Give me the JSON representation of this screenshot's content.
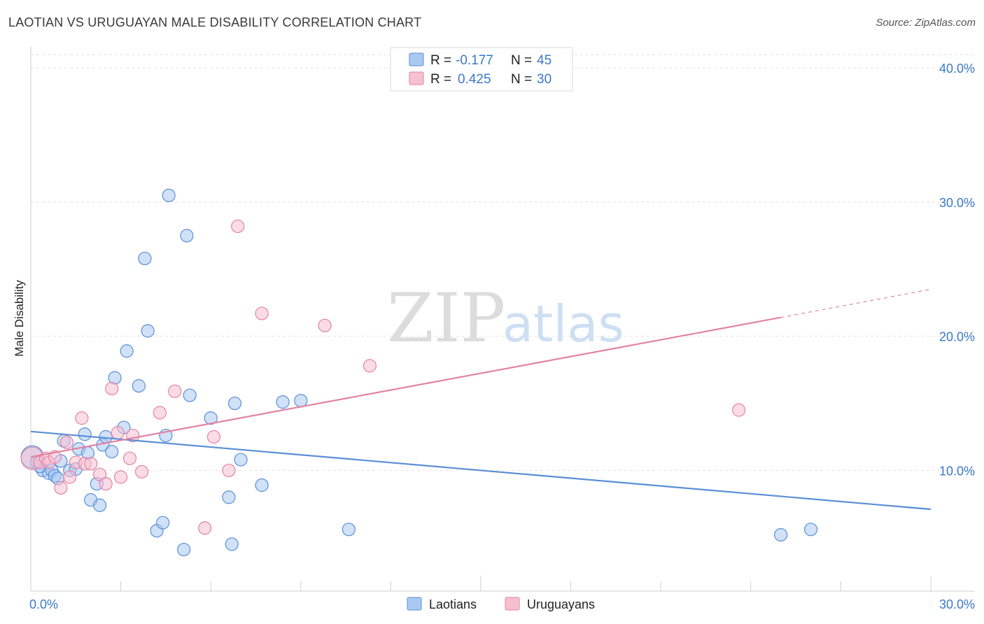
{
  "header": {
    "title": "LAOTIAN VS URUGUAYAN MALE DISABILITY CORRELATION CHART",
    "source": "Source: ZipAtlas.com"
  },
  "watermark": {
    "zip": "ZIP",
    "atlas": "atlas"
  },
  "legend": {
    "rows": [
      {
        "r_label": "R =",
        "r_value": "-0.177",
        "n_label": "N =",
        "n_value": "45",
        "color": "#a9c9f2",
        "stroke": "#5b8fd6"
      },
      {
        "r_label": "R =",
        "r_value": "0.425",
        "n_label": "N =",
        "n_value": "30",
        "color": "#f7c0d1",
        "stroke": "#e283a3"
      }
    ]
  },
  "bottom_legend": [
    {
      "label": "Laotians",
      "color": "#a9c9f2",
      "stroke": "#5b8fd6"
    },
    {
      "label": "Uruguayans",
      "color": "#f7c0d1",
      "stroke": "#e283a3"
    }
  ],
  "chart_data": {
    "type": "scatter",
    "title": "LAOTIAN VS URUGUAYAN MALE DISABILITY CORRELATION CHART",
    "xlabel": "",
    "ylabel": "Male Disability",
    "xlim": [
      0,
      30
    ],
    "ylim": [
      1,
      41
    ],
    "x_tick_labels": [
      "0.0%",
      "30.0%"
    ],
    "y_ticks": [
      10,
      20,
      30,
      40
    ],
    "y_tick_labels": [
      "10.0%",
      "20.0%",
      "30.0%",
      "40.0%"
    ],
    "grid": true,
    "legend_position": "top-center",
    "series": [
      {
        "name": "Laotians",
        "color": "#5b8fd6",
        "fill": "#a9c9f2",
        "trend": {
          "x": [
            0,
            30
          ],
          "y": [
            12.9,
            7.1
          ]
        },
        "points": [
          [
            0.05,
            11.0
          ],
          [
            0.2,
            10.6
          ],
          [
            0.4,
            10.0
          ],
          [
            0.6,
            9.8
          ],
          [
            0.7,
            10.0
          ],
          [
            0.8,
            9.6
          ],
          [
            0.9,
            9.4
          ],
          [
            1.0,
            10.7
          ],
          [
            1.1,
            12.2
          ],
          [
            1.3,
            10.0
          ],
          [
            1.5,
            10.1
          ],
          [
            1.6,
            11.6
          ],
          [
            1.8,
            12.7
          ],
          [
            1.9,
            11.3
          ],
          [
            2.0,
            7.8
          ],
          [
            2.2,
            9.0
          ],
          [
            2.3,
            7.4
          ],
          [
            2.4,
            11.9
          ],
          [
            2.5,
            12.5
          ],
          [
            2.7,
            11.4
          ],
          [
            2.8,
            16.9
          ],
          [
            3.1,
            13.2
          ],
          [
            3.2,
            18.9
          ],
          [
            3.6,
            16.3
          ],
          [
            3.8,
            25.8
          ],
          [
            3.9,
            20.4
          ],
          [
            4.2,
            5.5
          ],
          [
            4.4,
            6.1
          ],
          [
            4.5,
            12.6
          ],
          [
            4.6,
            30.5
          ],
          [
            5.1,
            4.1
          ],
          [
            5.2,
            27.5
          ],
          [
            5.3,
            15.6
          ],
          [
            6.0,
            13.9
          ],
          [
            6.6,
            8.0
          ],
          [
            6.7,
            4.5
          ],
          [
            6.8,
            15.0
          ],
          [
            7.0,
            10.8
          ],
          [
            7.7,
            8.9
          ],
          [
            8.4,
            15.1
          ],
          [
            9.0,
            15.2
          ],
          [
            10.6,
            5.6
          ],
          [
            25.0,
            5.2
          ],
          [
            26.0,
            5.6
          ],
          [
            0.3,
            10.3
          ]
        ]
      },
      {
        "name": "Uruguayans",
        "color": "#e283a3",
        "fill": "#f7c0d1",
        "trend": {
          "x": [
            0,
            25
          ],
          "y": [
            11.0,
            21.4
          ]
        },
        "trend_dashed": {
          "x": [
            25,
            30
          ],
          "y": [
            21.4,
            23.5
          ]
        },
        "points": [
          [
            0.05,
            10.9
          ],
          [
            0.3,
            10.6
          ],
          [
            0.5,
            10.9
          ],
          [
            0.6,
            10.6
          ],
          [
            0.8,
            11.0
          ],
          [
            1.0,
            8.7
          ],
          [
            1.2,
            12.1
          ],
          [
            1.3,
            9.5
          ],
          [
            1.5,
            10.6
          ],
          [
            1.7,
            13.9
          ],
          [
            1.8,
            10.5
          ],
          [
            2.0,
            10.5
          ],
          [
            2.3,
            9.7
          ],
          [
            2.5,
            9.0
          ],
          [
            2.7,
            16.1
          ],
          [
            2.9,
            12.8
          ],
          [
            3.0,
            9.5
          ],
          [
            3.3,
            10.9
          ],
          [
            3.4,
            12.6
          ],
          [
            3.7,
            9.9
          ],
          [
            4.3,
            14.3
          ],
          [
            4.8,
            15.9
          ],
          [
            5.8,
            5.7
          ],
          [
            6.1,
            12.5
          ],
          [
            6.6,
            10.0
          ],
          [
            6.9,
            28.2
          ],
          [
            7.7,
            21.7
          ],
          [
            9.8,
            20.8
          ],
          [
            11.3,
            17.8
          ],
          [
            23.6,
            14.5
          ]
        ]
      }
    ]
  }
}
